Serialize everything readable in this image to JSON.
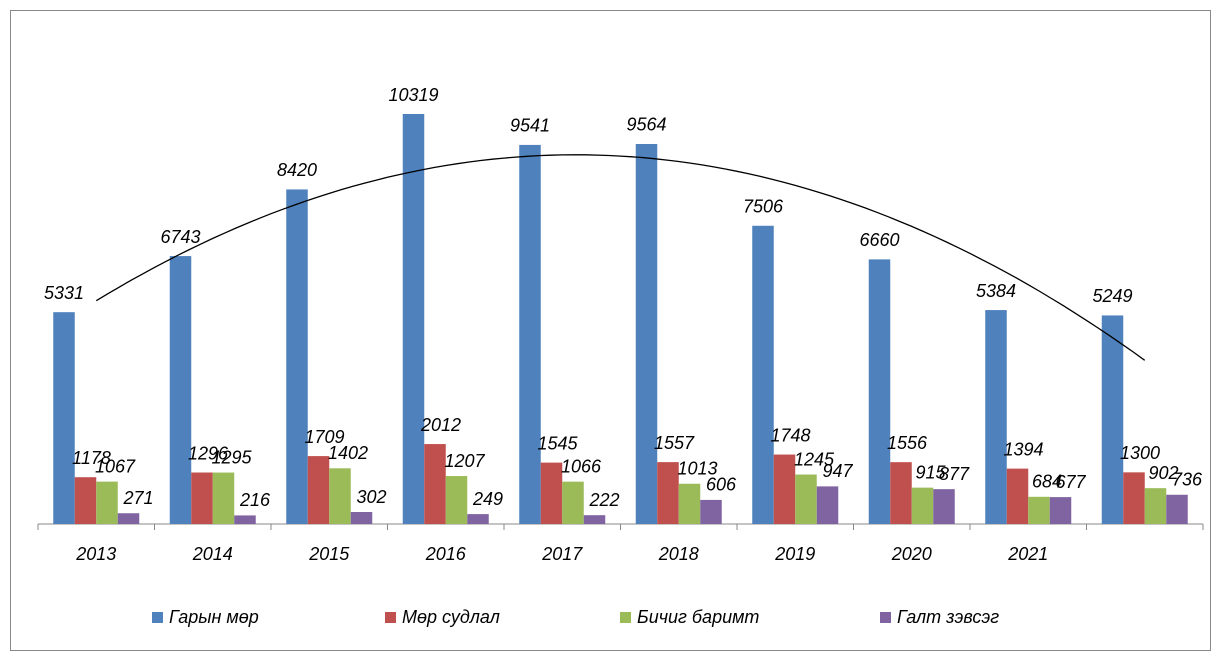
{
  "chart_data": {
    "type": "bar",
    "categories": [
      "2013",
      "2014",
      "2015",
      "2016",
      "2017",
      "2018",
      "2019",
      "2020",
      "2021",
      null
    ],
    "series": [
      {
        "name": "Гарын мөр",
        "color": "#4f81bd",
        "values": [
          5331,
          6743,
          8420,
          10319,
          9541,
          9564,
          7506,
          6660,
          5384,
          5249
        ]
      },
      {
        "name": "Мөр судлал",
        "color": "#c0504d",
        "values": [
          1178,
          1296,
          1709,
          2012,
          1545,
          1557,
          1748,
          1556,
          1394,
          1300
        ]
      },
      {
        "name": "Бичиг баримт",
        "color": "#9bbb59",
        "values": [
          1067,
          1295,
          1402,
          1207,
          1066,
          1013,
          1245,
          915,
          684,
          902
        ]
      },
      {
        "name": "Галт зэвсэг",
        "color": "#8064a2",
        "values": [
          271,
          216,
          302,
          249,
          222,
          606,
          947,
          877,
          677,
          736
        ]
      }
    ],
    "trendline": "polynomial",
    "legend": "bottom"
  }
}
